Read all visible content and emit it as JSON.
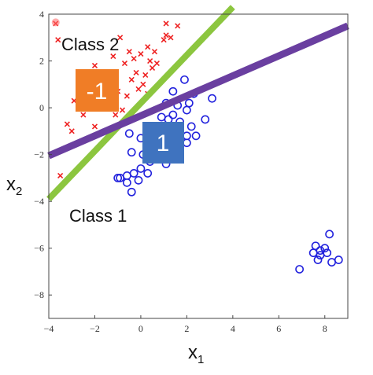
{
  "chart_data": {
    "type": "scatter",
    "title": "",
    "xlabel": "x",
    "xlabel_sub": "1",
    "ylabel": "x",
    "ylabel_sub": "2",
    "xlim": [
      -4,
      9
    ],
    "ylim": [
      -9,
      4
    ],
    "xticks": [
      -4,
      -2,
      0,
      2,
      4,
      6,
      8
    ],
    "yticks": [
      4,
      2,
      0,
      -2,
      -4,
      -6,
      -8
    ],
    "grid": false,
    "colors": {
      "red_series": "#ee2222",
      "blue_series": "#2222dd",
      "green_line": "#8cc63f",
      "purple_line": "#6a3fa0",
      "orange_badge": "#f07d26",
      "blue_badge": "#3f73bf"
    },
    "series": [
      {
        "marker": "x",
        "color": "#ee2222",
        "points": [
          [
            -3.7,
            3.6
          ],
          [
            -3.6,
            2.9
          ],
          [
            1.1,
            3.6
          ],
          [
            1.6,
            3.5
          ],
          [
            1.1,
            3.1
          ],
          [
            1.3,
            3.0
          ],
          [
            1.0,
            2.9
          ],
          [
            -0.9,
            3.0
          ],
          [
            -0.5,
            2.4
          ],
          [
            0.3,
            2.6
          ],
          [
            0.6,
            2.4
          ],
          [
            0.0,
            2.3
          ],
          [
            -0.3,
            2.1
          ],
          [
            0.4,
            2.0
          ],
          [
            0.7,
            1.9
          ],
          [
            -1.2,
            2.2
          ],
          [
            -0.7,
            1.9
          ],
          [
            -0.2,
            1.5
          ],
          [
            0.2,
            1.4
          ],
          [
            0.5,
            1.7
          ],
          [
            -0.4,
            1.2
          ],
          [
            0.1,
            1.0
          ],
          [
            -0.1,
            0.8
          ],
          [
            -2.0,
            1.8
          ],
          [
            -1.6,
            1.5
          ],
          [
            -2.3,
            1.1
          ],
          [
            -1.5,
            0.9
          ],
          [
            -1.0,
            0.7
          ],
          [
            -2.5,
            0.4
          ],
          [
            -2.9,
            0.3
          ],
          [
            -2.7,
            0.7
          ],
          [
            -1.9,
            0.4
          ],
          [
            -1.3,
            0.2
          ],
          [
            -0.6,
            0.5
          ],
          [
            0.3,
            0.6
          ],
          [
            -2.5,
            -0.3
          ],
          [
            -2.2,
            0.0
          ],
          [
            -2.0,
            -0.8
          ],
          [
            -3.2,
            -0.7
          ],
          [
            -1.1,
            -0.3
          ],
          [
            -0.8,
            -0.1
          ],
          [
            -3.0,
            -1.0
          ],
          [
            -3.5,
            -2.9
          ]
        ]
      },
      {
        "marker": "o",
        "color": "#2222dd",
        "points": [
          [
            1.9,
            1.2
          ],
          [
            2.3,
            0.6
          ],
          [
            1.4,
            0.7
          ],
          [
            2.1,
            0.2
          ],
          [
            3.1,
            0.4
          ],
          [
            1.1,
            0.2
          ],
          [
            1.6,
            0.1
          ],
          [
            2.0,
            -0.1
          ],
          [
            2.8,
            -0.5
          ],
          [
            1.4,
            -0.3
          ],
          [
            1.2,
            -0.5
          ],
          [
            0.9,
            -0.4
          ],
          [
            1.7,
            -0.6
          ],
          [
            2.2,
            -0.8
          ],
          [
            -0.5,
            -1.1
          ],
          [
            0.0,
            -1.3
          ],
          [
            0.5,
            -1.2
          ],
          [
            1.3,
            -1.0
          ],
          [
            2.0,
            -1.2
          ],
          [
            2.4,
            -1.2
          ],
          [
            0.8,
            -1.6
          ],
          [
            -0.4,
            -1.9
          ],
          [
            0.1,
            -2.0
          ],
          [
            0.4,
            -2.3
          ],
          [
            1.1,
            -2.4
          ],
          [
            -0.9,
            -3.0
          ],
          [
            -0.6,
            -2.9
          ],
          [
            -0.3,
            -2.8
          ],
          [
            0.0,
            -2.6
          ],
          [
            0.3,
            -2.8
          ],
          [
            -0.1,
            -3.1
          ],
          [
            -0.6,
            -3.2
          ],
          [
            -0.4,
            -3.6
          ],
          [
            -1.0,
            -3.0
          ],
          [
            2.0,
            -1.5
          ],
          [
            8.2,
            -5.4
          ],
          [
            7.6,
            -5.9
          ],
          [
            8.0,
            -6.0
          ],
          [
            7.8,
            -6.1
          ],
          [
            8.1,
            -6.2
          ],
          [
            7.5,
            -6.2
          ],
          [
            7.8,
            -6.3
          ],
          [
            7.7,
            -6.5
          ],
          [
            8.6,
            -6.5
          ],
          [
            8.3,
            -6.6
          ],
          [
            6.9,
            -6.9
          ]
        ]
      }
    ],
    "lines": [
      {
        "name": "green separator",
        "color": "#8cc63f",
        "x": [
          -4,
          4
        ],
        "y": [
          -3.9,
          4.3
        ]
      },
      {
        "name": "purple separator",
        "color": "#6a3fa0",
        "x": [
          -4,
          9
        ],
        "y": [
          -2.05,
          3.5
        ]
      }
    ]
  },
  "annotations": {
    "class2_label": "Class 2",
    "class1_label": "Class 1",
    "badge_neg": "-1",
    "badge_pos": "1"
  }
}
